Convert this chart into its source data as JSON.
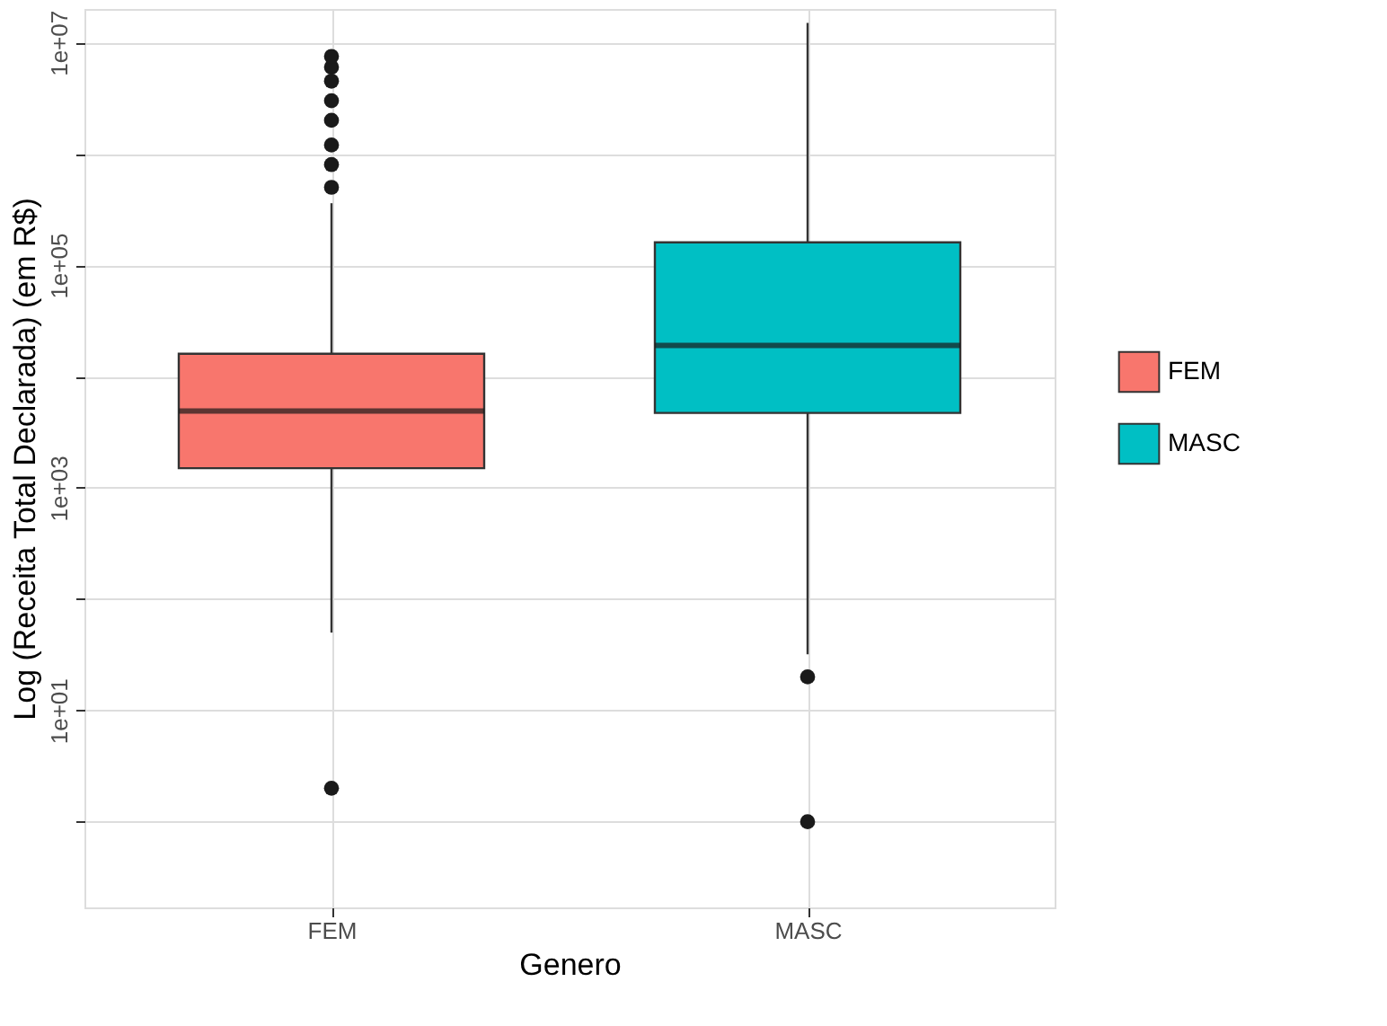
{
  "chart_data": {
    "type": "box",
    "xlabel": "Genero",
    "ylabel": "Log (Receita  Total Declarada) (em R$)",
    "categories": [
      "FEM",
      "MASC"
    ],
    "series": [
      {
        "name": "FEM",
        "color": "#f8766d",
        "boxes": [
          {
            "low": 50,
            "q1": 1500,
            "median": 4900,
            "q3": 16000,
            "high": 360000,
            "outliers": [
              2,
              500000,
              800000,
              1200000,
              2000000,
              3000000,
              4500000,
              6000000,
              7500000
            ]
          },
          null
        ]
      },
      {
        "name": "MASC",
        "color": "#00bfc4",
        "boxes": [
          null,
          {
            "low": 32,
            "q1": 4700,
            "median": 19000,
            "q3": 160000,
            "high": 15000000,
            "outliers": [
              1,
              20
            ]
          }
        ]
      }
    ],
    "log": "y",
    "ylim": [
      0.17,
      20000000
    ],
    "yticks": [
      {
        "value": 1,
        "label": null
      },
      {
        "value": 10,
        "label": "1e+01"
      },
      {
        "value": 100,
        "label": null
      },
      {
        "value": 1000,
        "label": "1e+03"
      },
      {
        "value": 10000,
        "label": null
      },
      {
        "value": 100000,
        "label": "1e+05"
      },
      {
        "value": 1000000,
        "label": null
      },
      {
        "value": 10000000,
        "label": "1e+07"
      }
    ],
    "grid": true,
    "legend": "right"
  }
}
